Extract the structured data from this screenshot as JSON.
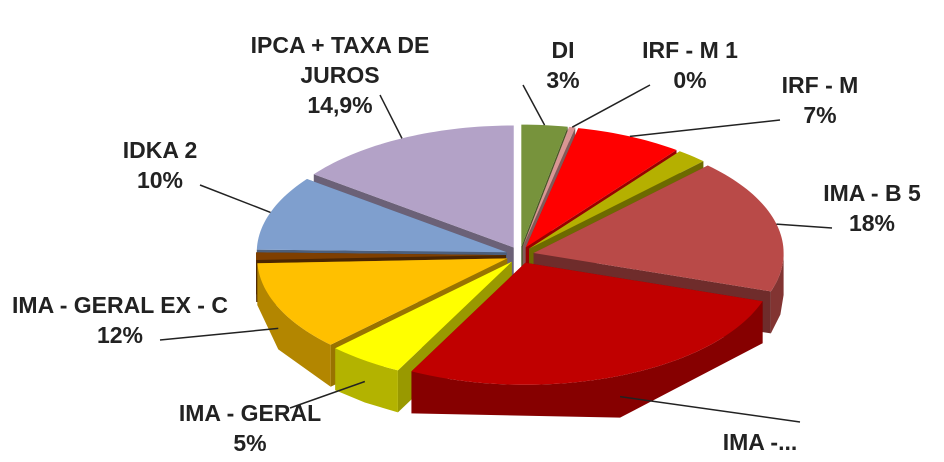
{
  "chart_data": {
    "type": "pie3d",
    "categories": [
      "DI",
      "IRF - M 1",
      "IRF - M",
      null,
      "IMA - B 5",
      "IMA -...",
      "IMA - GERAL",
      "IMA - GERAL EX - C",
      null,
      "IDKA 2",
      "IPCA + TAXA DE JUROS"
    ],
    "values": [
      3,
      0.4,
      7,
      2,
      18,
      27.7,
      5,
      12,
      1,
      10,
      14.9
    ],
    "value_labels": [
      "3%",
      "0%",
      "7%",
      null,
      "18%",
      null,
      "5%",
      "12%",
      null,
      "10%",
      "14,9%"
    ],
    "colors": [
      "#77933c",
      "#d99694",
      "#ff0000",
      "#b5b000",
      "#b94a48",
      "#c00000",
      "#ffff00",
      "#ffc000",
      "#7f3f00",
      "#7f9fce",
      "#b3a2c7"
    ]
  }
}
